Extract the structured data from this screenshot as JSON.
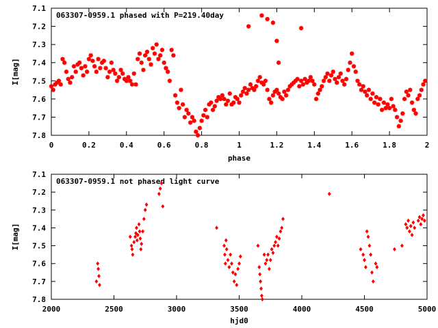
{
  "chart_data": [
    {
      "type": "scatter",
      "title": "063307-0959.1 phased with P=219.40day",
      "xlabel": "phase",
      "ylabel": "I[mag]",
      "xlim": [
        0,
        2
      ],
      "ylim": [
        7.8,
        7.1
      ],
      "y_inverted": true,
      "grid": false,
      "legend": "none",
      "color": "#ff0000",
      "marker": "cross",
      "xticks": [
        "0",
        "0.2",
        "0.4",
        "0.6",
        "0.8",
        "1",
        "1.2",
        "1.4",
        "1.6",
        "1.8",
        "2"
      ],
      "yticks": [
        "7.1",
        "7.2",
        "7.3",
        "7.4",
        "7.5",
        "7.6",
        "7.7",
        "7.8"
      ],
      "points": [
        [
          0.0,
          7.53
        ],
        [
          0.01,
          7.55
        ],
        [
          0.02,
          7.52
        ],
        [
          0.03,
          7.51
        ],
        [
          0.04,
          7.5
        ],
        [
          0.05,
          7.52
        ],
        [
          0.06,
          7.38
        ],
        [
          0.07,
          7.4
        ],
        [
          0.08,
          7.45
        ],
        [
          0.09,
          7.49
        ],
        [
          0.1,
          7.51
        ],
        [
          0.11,
          7.48
        ],
        [
          0.12,
          7.42
        ],
        [
          0.13,
          7.45
        ],
        [
          0.14,
          7.41
        ],
        [
          0.15,
          7.4
        ],
        [
          0.16,
          7.43
        ],
        [
          0.17,
          7.47
        ],
        [
          0.18,
          7.42
        ],
        [
          0.19,
          7.45
        ],
        [
          0.2,
          7.38
        ],
        [
          0.21,
          7.36
        ],
        [
          0.22,
          7.39
        ],
        [
          0.23,
          7.42
        ],
        [
          0.24,
          7.45
        ],
        [
          0.25,
          7.38
        ],
        [
          0.26,
          7.43
        ],
        [
          0.27,
          7.4
        ],
        [
          0.28,
          7.39
        ],
        [
          0.29,
          7.43
        ],
        [
          0.3,
          7.48
        ],
        [
          0.31,
          7.45
        ],
        [
          0.32,
          7.4
        ],
        [
          0.33,
          7.44
        ],
        [
          0.34,
          7.46
        ],
        [
          0.35,
          7.5
        ],
        [
          0.36,
          7.48
        ],
        [
          0.37,
          7.44
        ],
        [
          0.38,
          7.46
        ],
        [
          0.39,
          7.49
        ],
        [
          0.4,
          7.5
        ],
        [
          0.41,
          7.48
        ],
        [
          0.42,
          7.5
        ],
        [
          0.43,
          7.52
        ],
        [
          0.44,
          7.46
        ],
        [
          0.45,
          7.52
        ],
        [
          0.46,
          7.38
        ],
        [
          0.47,
          7.35
        ],
        [
          0.48,
          7.4
        ],
        [
          0.49,
          7.44
        ],
        [
          0.5,
          7.36
        ],
        [
          0.51,
          7.34
        ],
        [
          0.52,
          7.38
        ],
        [
          0.53,
          7.41
        ],
        [
          0.54,
          7.32
        ],
        [
          0.55,
          7.35
        ],
        [
          0.56,
          7.3
        ],
        [
          0.57,
          7.38
        ],
        [
          0.58,
          7.36
        ],
        [
          0.59,
          7.33
        ],
        [
          0.6,
          7.4
        ],
        [
          0.61,
          7.43
        ],
        [
          0.62,
          7.45
        ],
        [
          0.63,
          7.5
        ],
        [
          0.64,
          7.33
        ],
        [
          0.65,
          7.36
        ],
        [
          0.66,
          7.58
        ],
        [
          0.67,
          7.62
        ],
        [
          0.68,
          7.65
        ],
        [
          0.69,
          7.55
        ],
        [
          0.7,
          7.63
        ],
        [
          0.71,
          7.7
        ],
        [
          0.72,
          7.66
        ],
        [
          0.73,
          7.68
        ],
        [
          0.74,
          7.73
        ],
        [
          0.75,
          7.7
        ],
        [
          0.76,
          7.72
        ],
        [
          0.77,
          7.78
        ],
        [
          0.78,
          7.8
        ],
        [
          0.79,
          7.76
        ],
        [
          0.8,
          7.72
        ],
        [
          0.81,
          7.69
        ],
        [
          0.82,
          7.66
        ],
        [
          0.83,
          7.7
        ],
        [
          0.84,
          7.63
        ],
        [
          0.85,
          7.62
        ],
        [
          0.86,
          7.66
        ],
        [
          0.87,
          7.64
        ],
        [
          0.88,
          7.61
        ],
        [
          0.89,
          7.59
        ],
        [
          0.9,
          7.6
        ],
        [
          0.91,
          7.58
        ],
        [
          0.92,
          7.6
        ],
        [
          0.93,
          7.63
        ],
        [
          0.94,
          7.61
        ],
        [
          0.95,
          7.57
        ],
        [
          0.96,
          7.63
        ],
        [
          0.97,
          7.62
        ],
        [
          0.98,
          7.59
        ],
        [
          0.99,
          7.6
        ],
        [
          1.0,
          7.62
        ],
        [
          1.01,
          7.58
        ],
        [
          1.02,
          7.56
        ],
        [
          1.03,
          7.54
        ],
        [
          1.04,
          7.57
        ],
        [
          1.05,
          7.55
        ],
        [
          1.06,
          7.52
        ],
        [
          1.07,
          7.54
        ],
        [
          1.08,
          7.55
        ],
        [
          1.09,
          7.53
        ],
        [
          1.1,
          7.5
        ],
        [
          1.11,
          7.48
        ],
        [
          1.12,
          7.51
        ],
        [
          1.13,
          7.52
        ],
        [
          1.14,
          7.5
        ],
        [
          1.15,
          7.55
        ],
        [
          1.16,
          7.6
        ],
        [
          1.17,
          7.62
        ],
        [
          1.18,
          7.58
        ],
        [
          1.19,
          7.56
        ],
        [
          1.2,
          7.55
        ],
        [
          1.21,
          7.57
        ],
        [
          1.22,
          7.59
        ],
        [
          1.23,
          7.6
        ],
        [
          1.24,
          7.56
        ],
        [
          1.25,
          7.58
        ],
        [
          1.26,
          7.55
        ],
        [
          1.27,
          7.53
        ],
        [
          1.28,
          7.52
        ],
        [
          1.29,
          7.51
        ],
        [
          1.3,
          7.5
        ],
        [
          1.31,
          7.49
        ],
        [
          1.32,
          7.53
        ],
        [
          1.33,
          7.5
        ],
        [
          1.34,
          7.52
        ],
        [
          1.35,
          7.49
        ],
        [
          1.36,
          7.51
        ],
        [
          1.37,
          7.5
        ],
        [
          1.38,
          7.48
        ],
        [
          1.39,
          7.5
        ],
        [
          1.4,
          7.52
        ],
        [
          1.41,
          7.6
        ],
        [
          1.42,
          7.57
        ],
        [
          1.43,
          7.55
        ],
        [
          1.44,
          7.53
        ],
        [
          1.45,
          7.5
        ],
        [
          1.46,
          7.48
        ],
        [
          1.47,
          7.46
        ],
        [
          1.48,
          7.5
        ],
        [
          1.49,
          7.47
        ],
        [
          1.5,
          7.45
        ],
        [
          1.51,
          7.49
        ],
        [
          1.52,
          7.51
        ],
        [
          1.53,
          7.48
        ],
        [
          1.54,
          7.46
        ],
        [
          1.55,
          7.5
        ],
        [
          1.56,
          7.52
        ],
        [
          1.57,
          7.49
        ],
        [
          1.58,
          7.44
        ],
        [
          1.59,
          7.4
        ],
        [
          1.6,
          7.35
        ],
        [
          1.61,
          7.42
        ],
        [
          1.62,
          7.45
        ],
        [
          1.63,
          7.5
        ],
        [
          1.64,
          7.52
        ],
        [
          1.65,
          7.55
        ],
        [
          1.66,
          7.53
        ],
        [
          1.67,
          7.56
        ],
        [
          1.68,
          7.58
        ],
        [
          1.69,
          7.55
        ],
        [
          1.7,
          7.6
        ],
        [
          1.71,
          7.57
        ],
        [
          1.72,
          7.62
        ],
        [
          1.73,
          7.59
        ],
        [
          1.74,
          7.63
        ],
        [
          1.75,
          7.6
        ],
        [
          1.76,
          7.66
        ],
        [
          1.77,
          7.62
        ],
        [
          1.78,
          7.65
        ],
        [
          1.79,
          7.63
        ],
        [
          1.8,
          7.65
        ],
        [
          1.81,
          7.6
        ],
        [
          1.82,
          7.64
        ],
        [
          1.83,
          7.66
        ],
        [
          1.84,
          7.7
        ],
        [
          1.85,
          7.75
        ],
        [
          1.86,
          7.72
        ],
        [
          1.87,
          7.68
        ],
        [
          1.88,
          7.6
        ],
        [
          1.89,
          7.56
        ],
        [
          1.9,
          7.58
        ],
        [
          1.91,
          7.55
        ],
        [
          1.92,
          7.62
        ],
        [
          1.93,
          7.66
        ],
        [
          1.94,
          7.68
        ],
        [
          1.95,
          7.6
        ],
        [
          1.96,
          7.58
        ],
        [
          1.97,
          7.55
        ],
        [
          1.98,
          7.52
        ],
        [
          1.99,
          7.5
        ],
        [
          1.12,
          7.14
        ],
        [
          1.15,
          7.16
        ],
        [
          1.18,
          7.18
        ],
        [
          1.2,
          7.28
        ],
        [
          1.21,
          7.4
        ],
        [
          1.33,
          7.21
        ],
        [
          1.05,
          7.2
        ]
      ]
    },
    {
      "type": "scatter",
      "title": "063307-0959.1 not phased light curve",
      "xlabel": "hjd0",
      "ylabel": "I[mag]",
      "xlim": [
        2000,
        5000
      ],
      "ylim": [
        7.8,
        7.1
      ],
      "y_inverted": true,
      "grid": false,
      "legend": "none",
      "color": "#ff0000",
      "marker": "diamond",
      "xticks": [
        "2000",
        "2500",
        "3000",
        "3500",
        "4000",
        "4500",
        "5000"
      ],
      "yticks": [
        "7.1",
        "7.2",
        "7.3",
        "7.4",
        "7.5",
        "7.6",
        "7.7",
        "7.8"
      ],
      "points": [
        [
          2360,
          7.7
        ],
        [
          2370,
          7.6
        ],
        [
          2375,
          7.63
        ],
        [
          2380,
          7.67
        ],
        [
          2385,
          7.72
        ],
        [
          2630,
          7.45
        ],
        [
          2640,
          7.5
        ],
        [
          2645,
          7.52
        ],
        [
          2650,
          7.55
        ],
        [
          2660,
          7.48
        ],
        [
          2670,
          7.45
        ],
        [
          2675,
          7.43
        ],
        [
          2680,
          7.4
        ],
        [
          2685,
          7.47
        ],
        [
          2690,
          7.44
        ],
        [
          2700,
          7.38
        ],
        [
          2705,
          7.42
        ],
        [
          2710,
          7.46
        ],
        [
          2715,
          7.52
        ],
        [
          2720,
          7.49
        ],
        [
          2730,
          7.42
        ],
        [
          2740,
          7.35
        ],
        [
          2750,
          7.3
        ],
        [
          2760,
          7.27
        ],
        [
          2860,
          7.21
        ],
        [
          2870,
          7.18
        ],
        [
          2880,
          7.15
        ],
        [
          2890,
          7.28
        ],
        [
          3320,
          7.4
        ],
        [
          3380,
          7.5
        ],
        [
          3385,
          7.55
        ],
        [
          3390,
          7.6
        ],
        [
          3395,
          7.47
        ],
        [
          3400,
          7.52
        ],
        [
          3410,
          7.58
        ],
        [
          3420,
          7.62
        ],
        [
          3430,
          7.55
        ],
        [
          3440,
          7.6
        ],
        [
          3450,
          7.65
        ],
        [
          3460,
          7.7
        ],
        [
          3470,
          7.66
        ],
        [
          3480,
          7.72
        ],
        [
          3490,
          7.63
        ],
        [
          3500,
          7.6
        ],
        [
          3510,
          7.56
        ],
        [
          3650,
          7.5
        ],
        [
          3660,
          7.62
        ],
        [
          3665,
          7.66
        ],
        [
          3670,
          7.7
        ],
        [
          3675,
          7.74
        ],
        [
          3680,
          7.78
        ],
        [
          3685,
          7.8
        ],
        [
          3700,
          7.55
        ],
        [
          3710,
          7.6
        ],
        [
          3720,
          7.58
        ],
        [
          3730,
          7.55
        ],
        [
          3740,
          7.63
        ],
        [
          3750,
          7.58
        ],
        [
          3760,
          7.52
        ],
        [
          3770,
          7.54
        ],
        [
          3780,
          7.5
        ],
        [
          3790,
          7.48
        ],
        [
          3800,
          7.45
        ],
        [
          3810,
          7.5
        ],
        [
          3820,
          7.46
        ],
        [
          3830,
          7.42
        ],
        [
          3840,
          7.4
        ],
        [
          3850,
          7.35
        ],
        [
          4220,
          7.21
        ],
        [
          4470,
          7.52
        ],
        [
          4490,
          7.55
        ],
        [
          4500,
          7.58
        ],
        [
          4510,
          7.62
        ],
        [
          4520,
          7.42
        ],
        [
          4530,
          7.45
        ],
        [
          4540,
          7.5
        ],
        [
          4550,
          7.55
        ],
        [
          4560,
          7.65
        ],
        [
          4570,
          7.7
        ],
        [
          4590,
          7.6
        ],
        [
          4600,
          7.62
        ],
        [
          4740,
          7.52
        ],
        [
          4800,
          7.5
        ],
        [
          4830,
          7.38
        ],
        [
          4840,
          7.4
        ],
        [
          4850,
          7.36
        ],
        [
          4860,
          7.42
        ],
        [
          4870,
          7.39
        ],
        [
          4880,
          7.44
        ],
        [
          4890,
          7.37
        ],
        [
          4900,
          7.4
        ],
        [
          4930,
          7.36
        ],
        [
          4940,
          7.34
        ],
        [
          4950,
          7.38
        ],
        [
          4960,
          7.35
        ],
        [
          4970,
          7.33
        ],
        [
          4980,
          7.36
        ]
      ]
    }
  ]
}
